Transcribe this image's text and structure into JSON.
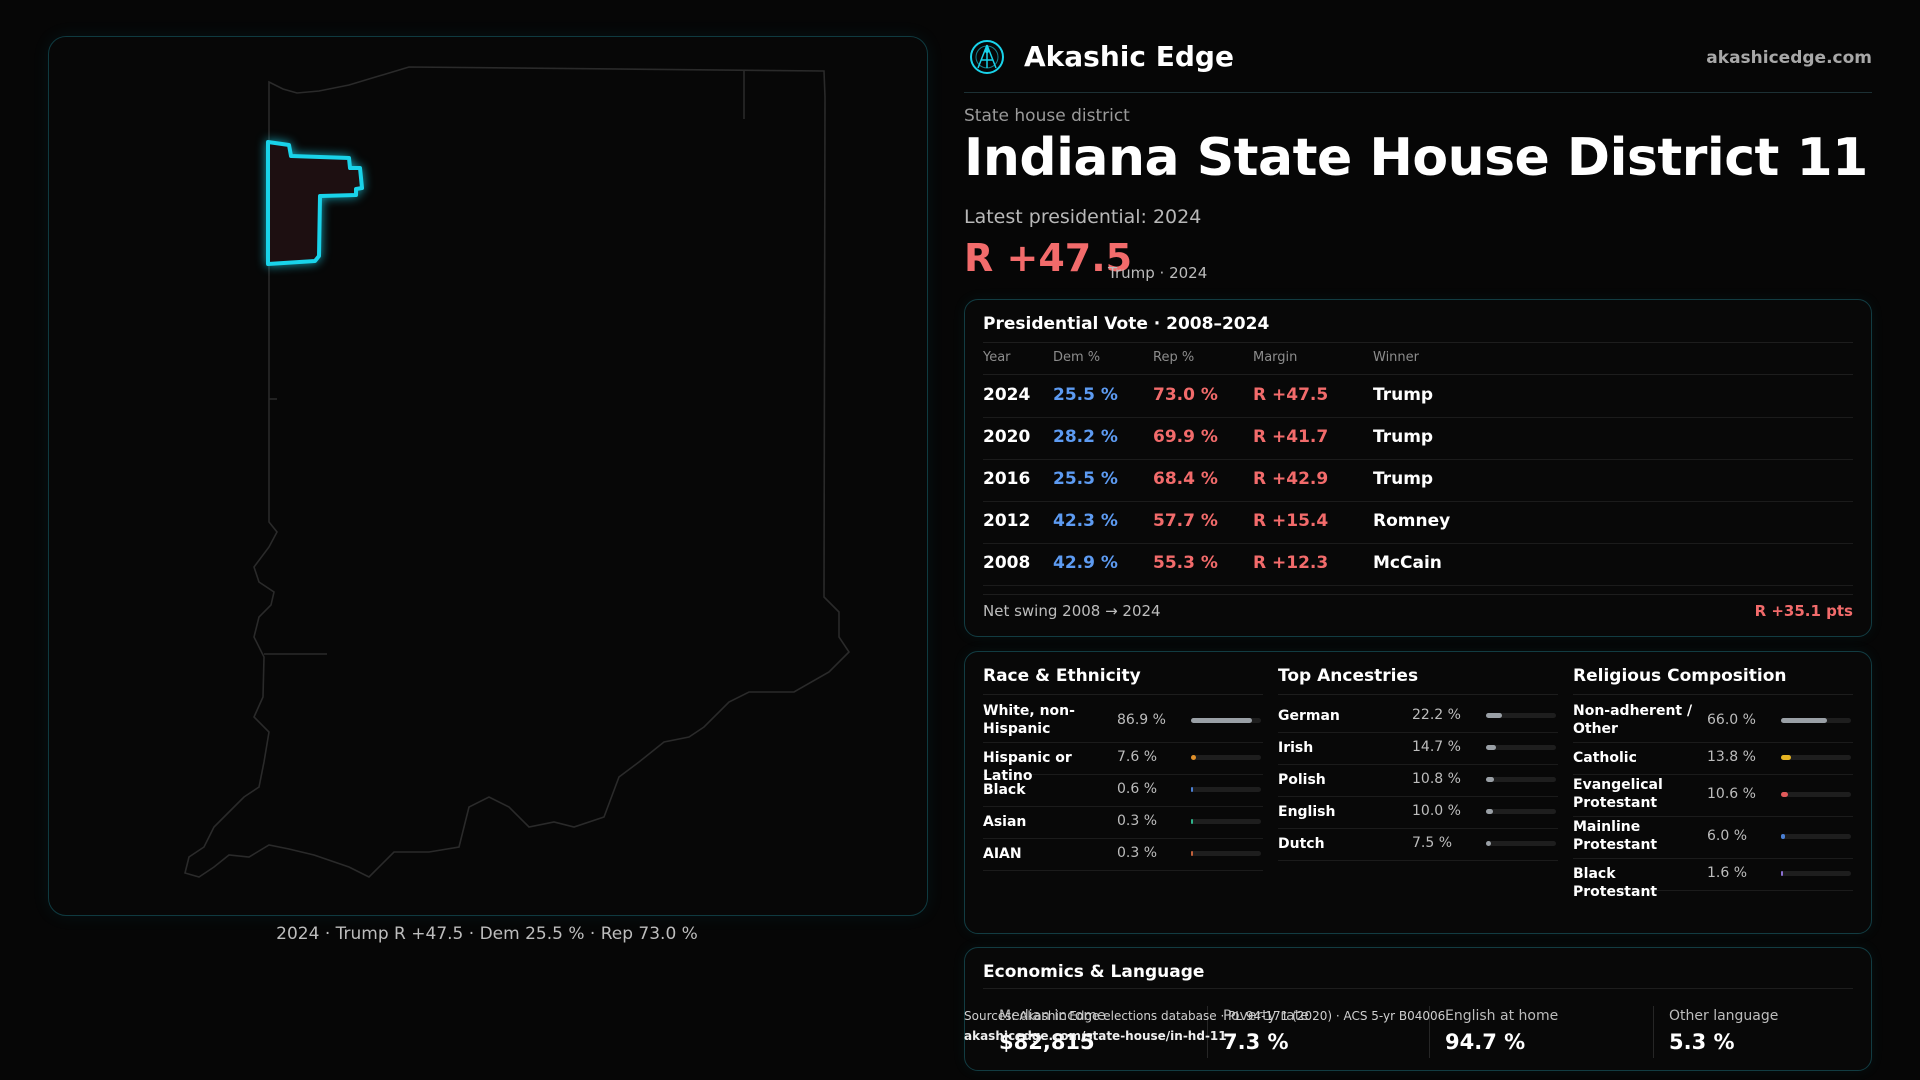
{
  "map": {
    "caption": "2024 · Trump R +47.5 · Dem 25.5 % · Rep 73.0 %"
  },
  "header": {
    "brand": "Akashic Edge",
    "site": "akashicedge.com"
  },
  "district": {
    "kicker": "State house district",
    "title": "Indiana State House District 11",
    "latest": "Latest presidential: 2024",
    "margin": "R +47.5",
    "margin_sub": "Trump · 2024"
  },
  "presidential": {
    "title": "Presidential Vote · 2008–2024",
    "headers": [
      "Year",
      "Dem %",
      "Rep %",
      "Margin",
      "Winner"
    ],
    "rows": [
      {
        "year": "2024",
        "dem": "25.5 %",
        "rep": "73.0 %",
        "margin": "R +47.5",
        "winner": "Trump"
      },
      {
        "year": "2020",
        "dem": "28.2 %",
        "rep": "69.9 %",
        "margin": "R +41.7",
        "winner": "Trump"
      },
      {
        "year": "2016",
        "dem": "25.5 %",
        "rep": "68.4 %",
        "margin": "R +42.9",
        "winner": "Trump"
      },
      {
        "year": "2012",
        "dem": "42.3 %",
        "rep": "57.7 %",
        "margin": "R +15.4",
        "winner": "Romney"
      },
      {
        "year": "2008",
        "dem": "42.9 %",
        "rep": "55.3 %",
        "margin": "R +12.3",
        "winner": "McCain"
      }
    ],
    "swing_label": "Net swing 2008 → 2024",
    "swing_value": "R +35.1 pts"
  },
  "race": {
    "title": "Race & Ethnicity",
    "items": [
      {
        "label": "White, non-Hispanic",
        "value": "86.9 %",
        "fraction": 0.869,
        "color": "#9aa0a6"
      },
      {
        "label": "Hispanic or Latino",
        "value": "7.6 %",
        "fraction": 0.076,
        "color": "#e0902a"
      },
      {
        "label": "Black",
        "value": "0.6 %",
        "fraction": 0.006,
        "color": "#4a7fd4"
      },
      {
        "label": "Asian",
        "value": "0.3 %",
        "fraction": 0.003,
        "color": "#2fb38a"
      },
      {
        "label": "AIAN",
        "value": "0.3 %",
        "fraction": 0.003,
        "color": "#c0603a"
      }
    ]
  },
  "ancestry": {
    "title": "Top Ancestries",
    "items": [
      {
        "label": "German",
        "value": "22.2 %",
        "fraction": 0.222,
        "color": "#9aa0a6"
      },
      {
        "label": "Irish",
        "value": "14.7 %",
        "fraction": 0.147,
        "color": "#9aa0a6"
      },
      {
        "label": "Polish",
        "value": "10.8 %",
        "fraction": 0.108,
        "color": "#9aa0a6"
      },
      {
        "label": "English",
        "value": "10.0 %",
        "fraction": 0.1,
        "color": "#9aa0a6"
      },
      {
        "label": "Dutch",
        "value": "7.5 %",
        "fraction": 0.075,
        "color": "#9aa0a6"
      }
    ]
  },
  "religion": {
    "title": "Religious Composition",
    "items": [
      {
        "label": "Non-adherent / Other",
        "value": "66.0 %",
        "fraction": 0.66,
        "color": "#9aa0a6"
      },
      {
        "label": "Catholic",
        "value": "13.8 %",
        "fraction": 0.138,
        "color": "#e6b422"
      },
      {
        "label": "Evangelical Protestant",
        "value": "10.6 %",
        "fraction": 0.106,
        "color": "#e05a5a"
      },
      {
        "label": "Mainline Protestant",
        "value": "6.0 %",
        "fraction": 0.06,
        "color": "#4a7fd4"
      },
      {
        "label": "Black Protestant",
        "value": "1.6 %",
        "fraction": 0.016,
        "color": "#8a6fd0"
      }
    ]
  },
  "economics": {
    "title": "Economics & Language",
    "stats": [
      {
        "label": "Median income",
        "value": "$82,815"
      },
      {
        "label": "Poverty rate",
        "value": "7.3 %"
      },
      {
        "label": "English at home",
        "value": "94.7 %"
      },
      {
        "label": "Other language",
        "value": "5.3 %"
      }
    ]
  },
  "source": {
    "line": "Sources: Akashic Edge elections database · PL 94-171 (2020) · ACS 5-yr B04006",
    "url": "akashicedge.com/state-house/in-hd-11"
  },
  "colors": {
    "accent": "#19d3ea",
    "dem": "#5d9bf2",
    "rep": "#f26b6b"
  }
}
